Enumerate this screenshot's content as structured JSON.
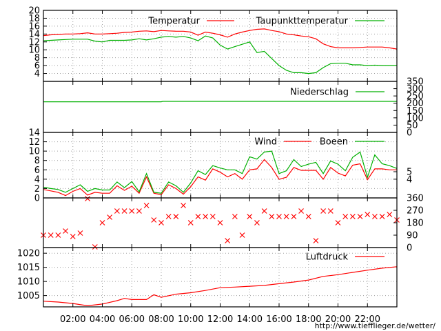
{
  "chart_data": {
    "type": "line",
    "x_ticks": [
      "02:00",
      "04:00",
      "06:00",
      "08:00",
      "10:00",
      "12:00",
      "14:00",
      "16:00",
      "18:00",
      "20:00",
      "22:00"
    ],
    "x_tick_hours": [
      2,
      4,
      6,
      8,
      10,
      12,
      14,
      16,
      18,
      20,
      22
    ],
    "x_range": [
      0,
      24
    ],
    "watermark": "http://www.tiefflieger.de/wetter/",
    "panels": [
      {
        "id": "temperature",
        "ylim": [
          2,
          20
        ],
        "left_ticks": [
          4,
          6,
          8,
          10,
          12,
          14,
          16,
          18,
          20
        ],
        "grid": true,
        "series": [
          {
            "name": "Temperatur",
            "color": "#ff0000",
            "x": [
              0,
              0.5,
              1,
              1.5,
              2,
              2.5,
              3,
              3.5,
              4,
              4.5,
              5,
              5.5,
              6,
              6.5,
              7,
              7.5,
              8,
              8.5,
              9,
              9.5,
              10,
              10.5,
              11,
              11.5,
              12,
              12.5,
              13,
              13.5,
              14,
              14.5,
              15,
              15.5,
              16,
              16.5,
              17,
              17.5,
              18,
              18.5,
              19,
              19.5,
              20,
              20.5,
              21,
              21.5,
              22,
              22.5,
              23,
              23.5,
              24
            ],
            "values": [
              13.6,
              13.8,
              13.9,
              14.0,
              14.0,
              14.1,
              14.3,
              14.0,
              14.0,
              14.1,
              14.2,
              14.4,
              14.5,
              14.7,
              14.8,
              14.6,
              14.9,
              14.8,
              14.7,
              14.7,
              14.5,
              13.7,
              14.5,
              14.2,
              13.8,
              13.2,
              14.0,
              14.5,
              14.9,
              15.2,
              15.3,
              14.9,
              14.6,
              14.0,
              13.8,
              13.5,
              13.3,
              12.8,
              11.5,
              10.8,
              10.5,
              10.5,
              10.5,
              10.6,
              10.7,
              10.7,
              10.7,
              10.5,
              10.2
            ]
          },
          {
            "name": "Taupunkttemperatur",
            "color": "#00b000",
            "x": [
              0,
              0.5,
              1,
              1.5,
              2,
              2.5,
              3,
              3.5,
              4,
              4.5,
              5,
              5.5,
              6,
              6.5,
              7,
              7.5,
              8,
              8.5,
              9,
              9.5,
              10,
              10.5,
              11,
              11.5,
              12,
              12.5,
              13,
              13.5,
              14,
              14.5,
              15,
              15.5,
              16,
              16.5,
              17,
              17.5,
              18,
              18.5,
              19,
              19.5,
              20,
              20.5,
              21,
              21.5,
              22,
              22.5,
              23,
              23.5,
              24
            ],
            "values": [
              12.3,
              12.4,
              12.5,
              12.6,
              12.7,
              12.7,
              12.7,
              12.2,
              12.0,
              12.4,
              12.4,
              12.4,
              12.5,
              12.8,
              12.5,
              12.8,
              13.2,
              13.4,
              13.2,
              13.4,
              13.0,
              12.3,
              13.5,
              13.0,
              11.2,
              10.2,
              10.8,
              11.4,
              12.0,
              9.3,
              9.6,
              7.8,
              6.0,
              4.8,
              4.2,
              4.2,
              4.0,
              4.2,
              5.5,
              6.5,
              6.6,
              6.6,
              6.2,
              6.2,
              6.0,
              6.1,
              6.0,
              6.0,
              6.0
            ]
          }
        ]
      },
      {
        "id": "precipitation",
        "ylim": [
          0,
          350
        ],
        "right_ticks": [
          0,
          50,
          100,
          150,
          200,
          250,
          300,
          350
        ],
        "grid": false,
        "series": [
          {
            "name": "Niederschlag",
            "color": "#00b000",
            "x": [
              0,
              8,
              8.1,
              24
            ],
            "values": [
              210,
              210,
              213,
              213
            ]
          }
        ]
      },
      {
        "id": "wind",
        "ylim": [
          0,
          14
        ],
        "left_ticks": [
          0,
          2,
          4,
          6,
          8,
          10,
          12,
          14
        ],
        "right_ticks": [
          {
            "value": 4.0,
            "label": "4"
          },
          {
            "value": 5.6,
            "label": "5"
          }
        ],
        "grid": true,
        "series": [
          {
            "name": "Wind",
            "color": "#ff0000",
            "x": [
              0,
              0.5,
              1,
              1.5,
              2,
              2.5,
              3,
              3.5,
              4,
              4.5,
              5,
              5.5,
              6,
              6.5,
              7,
              7.5,
              8,
              8.5,
              9,
              9.5,
              10,
              10.5,
              11,
              11.5,
              12,
              12.5,
              13,
              13.5,
              14,
              14.5,
              15,
              15.5,
              16,
              16.5,
              17,
              17.5,
              18,
              18.5,
              19,
              19.5,
              20,
              20.5,
              21,
              21.5,
              22,
              22.5,
              23,
              23.5,
              24
            ],
            "values": [
              1.8,
              1.5,
              1.2,
              0.5,
              1.4,
              2.0,
              0.6,
              1.2,
              1.0,
              1.0,
              2.6,
              1.6,
              2.5,
              1.0,
              4.5,
              1.0,
              0.7,
              2.8,
              2.0,
              0.8,
              2.4,
              4.5,
              3.8,
              6.2,
              5.5,
              4.5,
              5.2,
              4.0,
              6.0,
              6.2,
              8.2,
              6.5,
              4.0,
              4.4,
              6.5,
              5.9,
              5.9,
              5.9,
              4.0,
              6.5,
              5.3,
              4.7,
              7.0,
              7.3,
              3.9,
              6.2,
              6.2,
              6.0,
              6.0
            ]
          },
          {
            "name": "Boeen",
            "color": "#00b000",
            "x": [
              0,
              0.5,
              1,
              1.5,
              2,
              2.5,
              3,
              3.5,
              4,
              4.5,
              5,
              5.5,
              6,
              6.5,
              7,
              7.5,
              8,
              8.5,
              9,
              9.5,
              10,
              10.5,
              11,
              11.5,
              12,
              12.5,
              13,
              13.5,
              14,
              14.5,
              15,
              15.5,
              16,
              16.5,
              17,
              17.5,
              18,
              18.5,
              19,
              19.5,
              20,
              20.5,
              21,
              21.5,
              22,
              22.5,
              23,
              23.5,
              24
            ],
            "values": [
              2.3,
              2.0,
              1.8,
              1.2,
              2.0,
              2.8,
              1.4,
              2.0,
              1.7,
              1.7,
              3.4,
              2.2,
              3.5,
              1.3,
              5.2,
              1.2,
              1.0,
              3.4,
              2.6,
              1.2,
              3.2,
              5.8,
              5.0,
              6.9,
              6.4,
              6.0,
              6.0,
              5.2,
              8.8,
              8.3,
              9.8,
              10.0,
              5.2,
              5.8,
              8.2,
              6.7,
              7.2,
              7.6,
              5.2,
              7.9,
              7.2,
              5.8,
              8.7,
              9.8,
              4.4,
              9.2,
              7.3,
              6.9,
              6.3
            ]
          }
        ]
      },
      {
        "id": "wind_direction",
        "type": "scatter",
        "ylim": [
          0,
          360
        ],
        "right_ticks": [
          0,
          90,
          180,
          270,
          360
        ],
        "grid": false,
        "series": [
          {
            "name": "",
            "color": "#ff0000",
            "x": [
              0,
              0.5,
              1,
              1.5,
              2,
              2.5,
              3,
              3.5,
              4,
              4.5,
              5,
              5.5,
              6,
              6.5,
              7,
              7.5,
              8,
              8.5,
              9,
              9.5,
              10,
              10.5,
              11,
              11.5,
              12,
              12.5,
              13,
              13.5,
              14,
              14.5,
              15,
              15.5,
              16,
              16.5,
              17,
              17.5,
              18,
              18.5,
              19,
              19.5,
              20,
              20.5,
              21,
              21.5,
              22,
              22.5,
              23,
              23.5,
              24
            ],
            "values": [
              90,
              90,
              90,
              120,
              80,
              105,
              355,
              5,
              180,
              220,
              265,
              265,
              265,
              265,
              305,
              200,
              180,
              225,
              225,
              305,
              180,
              225,
              225,
              225,
              180,
              50,
              225,
              90,
              225,
              180,
              265,
              225,
              225,
              225,
              225,
              265,
              225,
              50,
              265,
              265,
              180,
              225,
              225,
              225,
              240,
              225,
              225,
              240,
              200
            ]
          }
        ]
      },
      {
        "id": "pressure",
        "ylim": [
          1001,
          1022
        ],
        "left_ticks": [
          1005,
          1010,
          1015,
          1020
        ],
        "grid": true,
        "series": [
          {
            "name": "Luftdruck",
            "color": "#ff0000",
            "x": [
              0,
              1,
              2,
              3,
              4,
              5,
              5.5,
              6,
              7,
              7.5,
              8,
              9,
              10,
              11,
              12,
              13,
              14,
              15,
              16,
              17,
              18,
              19,
              20,
              21,
              22,
              23,
              24
            ],
            "values": [
              1003.0,
              1002.7,
              1002.2,
              1001.4,
              1002.0,
              1003.2,
              1004.0,
              1003.6,
              1003.6,
              1005.3,
              1004.4,
              1005.5,
              1006.0,
              1006.8,
              1007.8,
              1008.0,
              1008.3,
              1008.6,
              1009.2,
              1009.8,
              1010.5,
              1011.8,
              1012.4,
              1013.2,
              1014.0,
              1014.7,
              1015.2
            ]
          }
        ]
      }
    ]
  }
}
